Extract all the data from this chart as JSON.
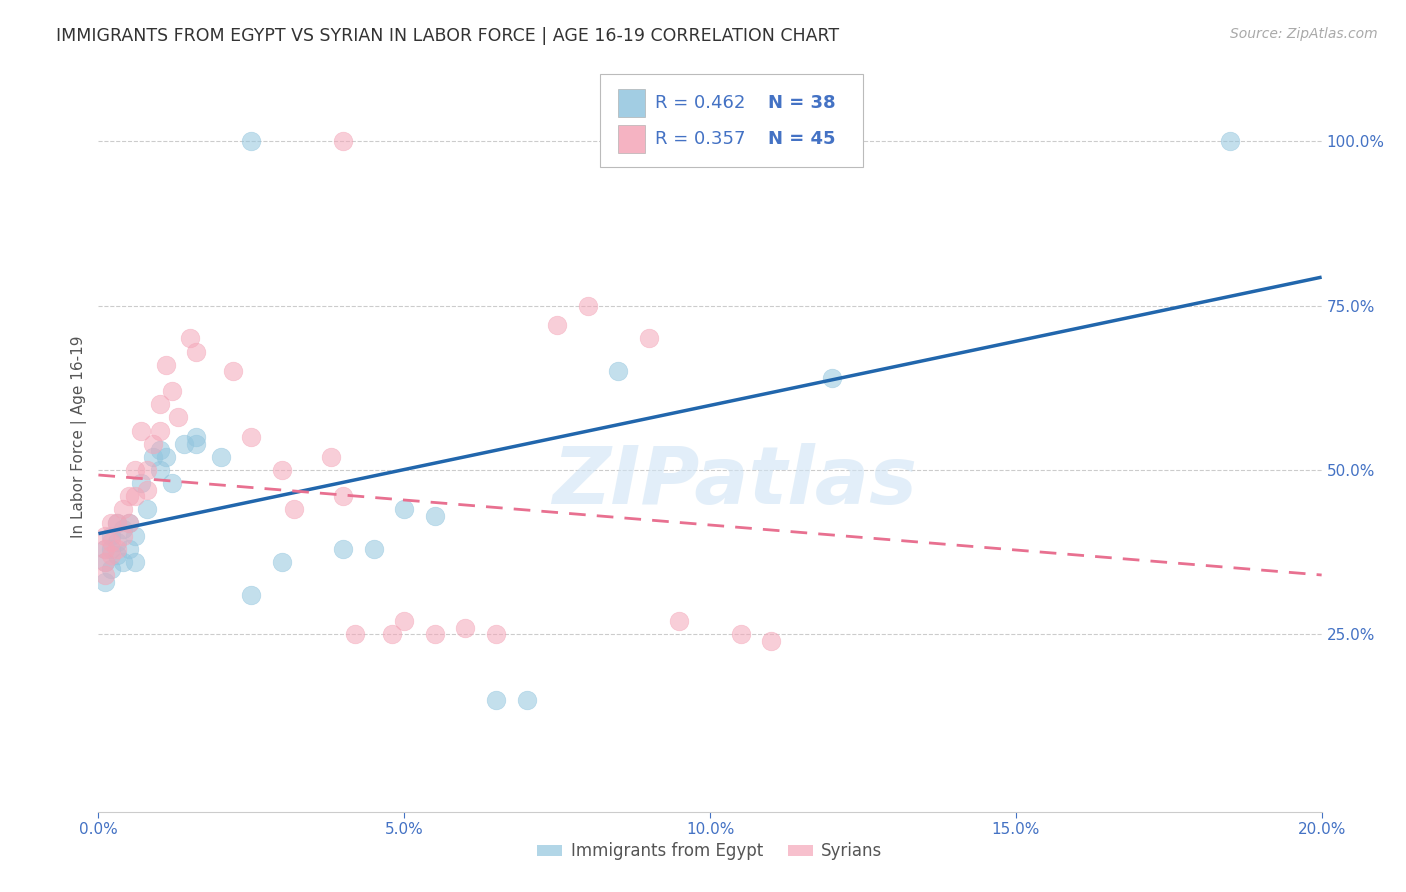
{
  "title": "IMMIGRANTS FROM EGYPT VS SYRIAN IN LABOR FORCE | AGE 16-19 CORRELATION CHART",
  "source": "Source: ZipAtlas.com",
  "ylabel_left": "In Labor Force | Age 16-19",
  "xlim": [
    0.0,
    0.2
  ],
  "ylim": [
    -0.02,
    1.12
  ],
  "xticks": [
    0.0,
    0.05,
    0.1,
    0.15,
    0.2
  ],
  "xticklabels": [
    "0.0%",
    "5.0%",
    "10.0%",
    "15.0%",
    "20.0%"
  ],
  "yticks_right": [
    0.25,
    0.5,
    0.75,
    1.0
  ],
  "ytick_right_labels": [
    "25.0%",
    "50.0%",
    "75.0%",
    "100.0%"
  ],
  "color_egypt": "#92c5de",
  "color_syria": "#f4a6b8",
  "color_egypt_line": "#2166ac",
  "color_syria_line": "#e87090",
  "legend_label1": "Immigrants from Egypt",
  "legend_label2": "Syrians",
  "watermark": "ZIPatlas",
  "egypt_x": [
    0.001,
    0.001,
    0.001,
    0.002,
    0.002,
    0.002,
    0.003,
    0.003,
    0.003,
    0.004,
    0.004,
    0.005,
    0.005,
    0.006,
    0.006,
    0.007,
    0.008,
    0.009,
    0.01,
    0.01,
    0.011,
    0.012,
    0.014,
    0.016,
    0.016,
    0.02,
    0.025,
    0.03,
    0.04,
    0.045,
    0.05,
    0.055,
    0.065,
    0.07,
    0.085,
    0.12,
    0.025,
    0.185
  ],
  "egypt_y": [
    0.36,
    0.38,
    0.33,
    0.4,
    0.38,
    0.35,
    0.42,
    0.39,
    0.37,
    0.41,
    0.36,
    0.42,
    0.38,
    0.4,
    0.36,
    0.48,
    0.44,
    0.52,
    0.53,
    0.5,
    0.52,
    0.48,
    0.54,
    0.54,
    0.55,
    0.52,
    0.31,
    0.36,
    0.38,
    0.38,
    0.44,
    0.43,
    0.15,
    0.15,
    0.65,
    0.64,
    1.0,
    1.0
  ],
  "syria_x": [
    0.001,
    0.001,
    0.001,
    0.001,
    0.002,
    0.002,
    0.002,
    0.003,
    0.003,
    0.004,
    0.004,
    0.005,
    0.005,
    0.006,
    0.006,
    0.007,
    0.008,
    0.008,
    0.009,
    0.01,
    0.01,
    0.011,
    0.012,
    0.013,
    0.015,
    0.016,
    0.022,
    0.025,
    0.03,
    0.032,
    0.038,
    0.04,
    0.042,
    0.048,
    0.05,
    0.055,
    0.06,
    0.065,
    0.075,
    0.08,
    0.09,
    0.095,
    0.105,
    0.11,
    0.04
  ],
  "syria_y": [
    0.4,
    0.38,
    0.36,
    0.34,
    0.42,
    0.39,
    0.37,
    0.42,
    0.38,
    0.44,
    0.4,
    0.46,
    0.42,
    0.5,
    0.46,
    0.56,
    0.5,
    0.47,
    0.54,
    0.6,
    0.56,
    0.66,
    0.62,
    0.58,
    0.7,
    0.68,
    0.65,
    0.55,
    0.5,
    0.44,
    0.52,
    0.46,
    0.25,
    0.25,
    0.27,
    0.25,
    0.26,
    0.25,
    0.72,
    0.75,
    0.7,
    0.27,
    0.25,
    0.24,
    1.0
  ],
  "background_color": "#ffffff",
  "grid_color": "#cccccc",
  "title_color": "#333333",
  "tick_color": "#4472c4"
}
